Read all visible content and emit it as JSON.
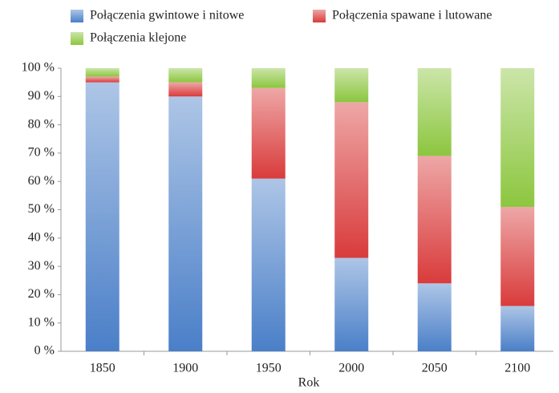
{
  "chart_data": {
    "type": "stacked_bar",
    "x_label": "Rok",
    "categories": [
      "1850",
      "1900",
      "1950",
      "2000",
      "2050",
      "2100"
    ],
    "series": [
      {
        "name": "Połączenia gwintowe i nitowe",
        "color": "#4a7fc8",
        "values": [
          95,
          90,
          61,
          33,
          24,
          16
        ]
      },
      {
        "name": "Połączenia spawane i lutowane",
        "color": "#d93b3b",
        "values": [
          2,
          5,
          32,
          55,
          45,
          35
        ]
      },
      {
        "name": "Połączenia klejone",
        "color": "#8cc63f",
        "values": [
          3,
          5,
          7,
          12,
          31,
          49
        ]
      }
    ],
    "ylim": [
      0,
      100
    ],
    "yticks": [
      {
        "value": 0,
        "label": "0 %"
      },
      {
        "value": 10,
        "label": "10 %"
      },
      {
        "value": 20,
        "label": "20 %"
      },
      {
        "value": 30,
        "label": "30 %"
      },
      {
        "value": 40,
        "label": "40 %"
      },
      {
        "value": 50,
        "label": "50 %"
      },
      {
        "value": 60,
        "label": "60 %"
      },
      {
        "value": 70,
        "label": "70 %"
      },
      {
        "value": 80,
        "label": "80 %"
      },
      {
        "value": 90,
        "label": "90 %"
      },
      {
        "value": 100,
        "label": "100 %"
      }
    ],
    "grid": false,
    "legend": "top"
  }
}
